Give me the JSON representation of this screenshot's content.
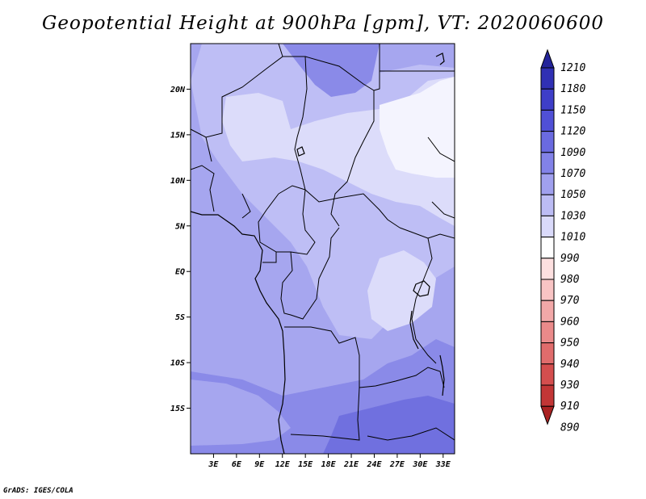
{
  "title": "Geopotential Height at 900hPa [gpm], VT: 2020060600",
  "credit": "GrADS: IGES/COLA",
  "map": {
    "lat_ticks": [
      {
        "label": "20N",
        "value": 20
      },
      {
        "label": "15N",
        "value": 15
      },
      {
        "label": "10N",
        "value": 10
      },
      {
        "label": "5N",
        "value": 5
      },
      {
        "label": "EQ",
        "value": 0
      },
      {
        "label": "5S",
        "value": -5
      },
      {
        "label": "10S",
        "value": -10
      },
      {
        "label": "15S",
        "value": -15
      }
    ],
    "lon_ticks": [
      {
        "label": "3E",
        "value": 3
      },
      {
        "label": "6E",
        "value": 6
      },
      {
        "label": "9E",
        "value": 9
      },
      {
        "label": "12E",
        "value": 12
      },
      {
        "label": "15E",
        "value": 15
      },
      {
        "label": "18E",
        "value": 18
      },
      {
        "label": "21E",
        "value": 21
      },
      {
        "label": "24E",
        "value": 24
      },
      {
        "label": "27E",
        "value": 27
      },
      {
        "label": "30E",
        "value": 30
      },
      {
        "label": "33E",
        "value": 33
      }
    ],
    "lon_range": [
      0,
      34.5
    ],
    "lat_range": [
      -20,
      25
    ]
  },
  "colorbar": {
    "levels": [
      "1210",
      "1180",
      "1150",
      "1120",
      "1090",
      "1070",
      "1050",
      "1030",
      "1010",
      "990",
      "980",
      "970",
      "960",
      "950",
      "940",
      "930",
      "910",
      "890"
    ],
    "colors": [
      "#24249a",
      "#3030b4",
      "#3e3ec8",
      "#5050d6",
      "#6a6ae0",
      "#8282e8",
      "#a0a0ee",
      "#bcbcf4",
      "#dadafa",
      "#ffffff",
      "#fde0e0",
      "#f8c4c4",
      "#f2a8a8",
      "#ea8a8a",
      "#e06c6c",
      "#d44e4e",
      "#c23636",
      "#aa2222"
    ]
  },
  "field_colors": {
    "c1010": "#dcdcfa",
    "c1030": "#bebef5",
    "c1050": "#a6a6ef",
    "c1070": "#8a8ae8",
    "c1090": "#7070df"
  }
}
